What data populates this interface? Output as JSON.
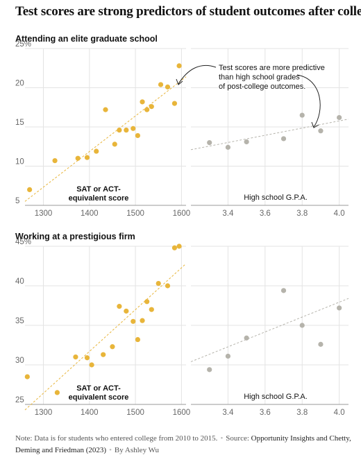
{
  "title": "Test scores are strong predictors of student outcomes after college",
  "note": {
    "text": "Note: Data is for students who entered college from 2010 to 2015.",
    "source_prefix": "Source:",
    "source": "Opportunity Insights and Chetty, Deming and Friedman (2023)",
    "byline": "By Ashley Wu"
  },
  "colors": {
    "test": "#e8b53a",
    "gpa": "#b5b3ab",
    "grid": "#e3e3e3",
    "axis": "#666666"
  },
  "chart_data": [
    {
      "type": "scatter",
      "title": "Attending an elite graduate school",
      "xlabel": "SAT or ACT-\nequivalent score",
      "xlim": [
        1260,
        1610
      ],
      "ylim": [
        5,
        25
      ],
      "xticks": [
        1300,
        1400,
        1500,
        1600
      ],
      "yticks": [
        5,
        10,
        15,
        20,
        25
      ],
      "ytick_labels": [
        "5",
        "10",
        "15",
        "20",
        "25%"
      ],
      "grid": true,
      "series": [
        {
          "color": "#e8b53a",
          "points": [
            [
              1270,
              7.0
            ],
            [
              1325,
              10.7
            ],
            [
              1375,
              11.0
            ],
            [
              1395,
              11.1
            ],
            [
              1415,
              11.9
            ],
            [
              1435,
              17.2
            ],
            [
              1455,
              12.8
            ],
            [
              1465,
              14.6
            ],
            [
              1480,
              14.6
            ],
            [
              1495,
              14.8
            ],
            [
              1505,
              13.9
            ],
            [
              1515,
              18.2
            ],
            [
              1525,
              17.2
            ],
            [
              1535,
              17.6
            ],
            [
              1555,
              20.4
            ],
            [
              1570,
              20.1
            ],
            [
              1585,
              18.0
            ],
            [
              1595,
              22.8
            ]
          ]
        }
      ],
      "trendline": [
        [
          1260,
          5.5
        ],
        [
          1610,
          21.4
        ]
      ]
    },
    {
      "type": "scatter",
      "title": "",
      "xlabel": "High school G.P.A.",
      "xlim": [
        3.2,
        4.05
      ],
      "ylim": [
        5,
        25
      ],
      "xticks": [
        3.4,
        3.6,
        3.8,
        4.0
      ],
      "xtick_labels": [
        "3.4",
        "3.6",
        "3.8",
        "4.0"
      ],
      "grid": true,
      "annotation": "Test scores are more predictive\nthan high school grades\nof post-college outcomes.",
      "series": [
        {
          "color": "#b5b3ab",
          "points": [
            [
              3.3,
              13.0
            ],
            [
              3.4,
              12.4
            ],
            [
              3.5,
              13.1
            ],
            [
              3.7,
              13.5
            ],
            [
              3.8,
              16.5
            ],
            [
              3.9,
              14.5
            ],
            [
              4.0,
              16.2
            ]
          ]
        }
      ],
      "trendline": [
        [
          3.2,
          12.1
        ],
        [
          4.05,
          16.0
        ]
      ]
    },
    {
      "type": "scatter",
      "title": "Working at a prestigious firm",
      "xlabel": "SAT or ACT-\nequivalent score",
      "xlim": [
        1260,
        1610
      ],
      "ylim": [
        25,
        45
      ],
      "xticks": [
        1300,
        1400,
        1500,
        1600
      ],
      "yticks": [
        25,
        30,
        35,
        40,
        45
      ],
      "ytick_labels": [
        "25",
        "30",
        "35",
        "40",
        "45%"
      ],
      "grid": true,
      "series": [
        {
          "color": "#e8b53a",
          "points": [
            [
              1265,
              28.5
            ],
            [
              1330,
              26.5
            ],
            [
              1370,
              31.0
            ],
            [
              1395,
              30.9
            ],
            [
              1405,
              30.0
            ],
            [
              1430,
              31.3
            ],
            [
              1450,
              32.3
            ],
            [
              1465,
              37.4
            ],
            [
              1480,
              36.8
            ],
            [
              1495,
              35.5
            ],
            [
              1505,
              33.2
            ],
            [
              1515,
              35.6
            ],
            [
              1525,
              38.0
            ],
            [
              1535,
              37.0
            ],
            [
              1550,
              40.3
            ],
            [
              1570,
              40.0
            ],
            [
              1585,
              44.8
            ],
            [
              1595,
              45.0
            ]
          ]
        }
      ],
      "trendline": [
        [
          1260,
          24.3
        ],
        [
          1610,
          42.8
        ]
      ]
    },
    {
      "type": "scatter",
      "title": "",
      "xlabel": "High school G.P.A.",
      "xlim": [
        3.2,
        4.05
      ],
      "ylim": [
        25,
        45
      ],
      "xticks": [
        3.4,
        3.6,
        3.8,
        4.0
      ],
      "xtick_labels": [
        "3.4",
        "3.6",
        "3.8",
        "4.0"
      ],
      "grid": true,
      "series": [
        {
          "color": "#b5b3ab",
          "points": [
            [
              3.3,
              29.4
            ],
            [
              3.4,
              31.1
            ],
            [
              3.5,
              33.4
            ],
            [
              3.7,
              39.4
            ],
            [
              3.8,
              35.0
            ],
            [
              3.9,
              32.6
            ],
            [
              4.0,
              37.2
            ]
          ]
        }
      ],
      "trendline": [
        [
          3.2,
          30.4
        ],
        [
          4.05,
          38.4
        ]
      ]
    }
  ]
}
